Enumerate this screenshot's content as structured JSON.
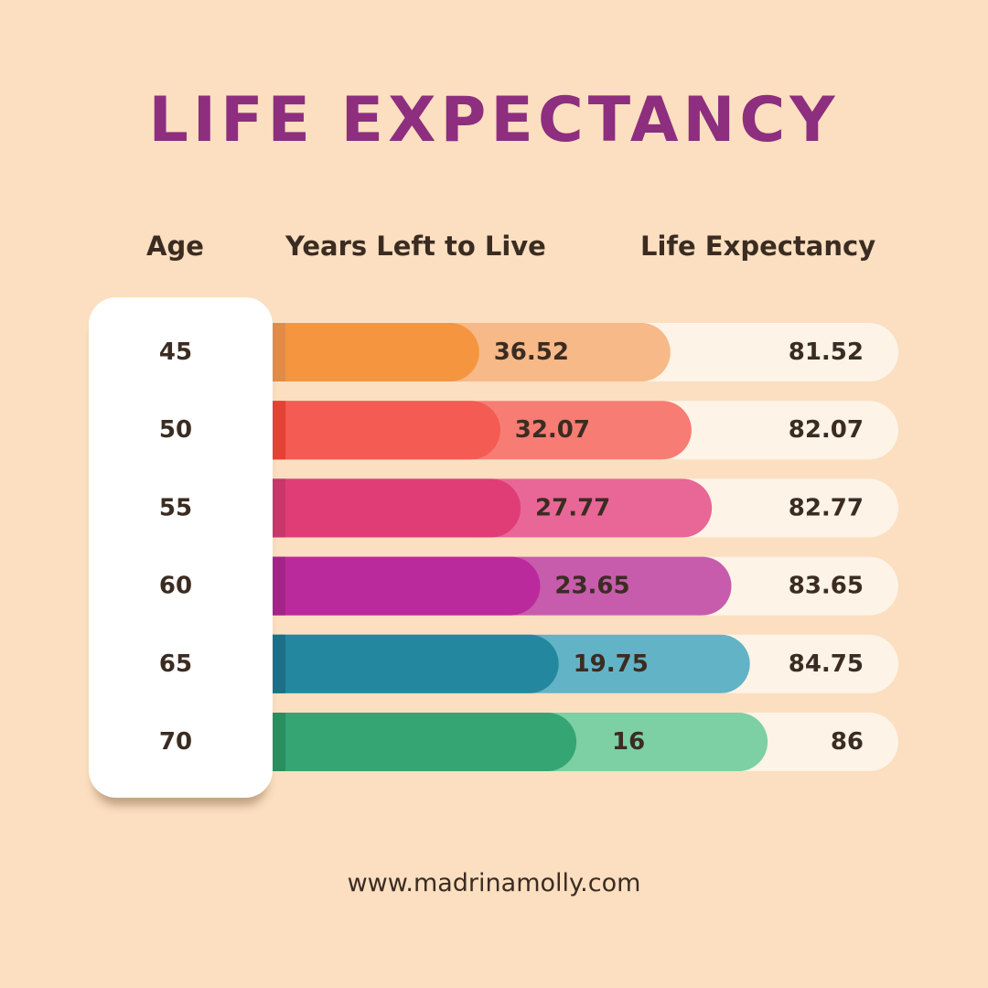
{
  "title": "LIFE EXPECTANCY",
  "headers": {
    "age": "Age",
    "years_left": "Years Left to Live",
    "life_expectancy": "Life Expectancy"
  },
  "footer": "www.madrinamolly.com",
  "chart_data": {
    "type": "bar",
    "title": "LIFE EXPECTANCY",
    "categories": [
      "45",
      "50",
      "55",
      "60",
      "65",
      "70"
    ],
    "series": [
      {
        "name": "Years Left to Live",
        "values": [
          36.52,
          32.07,
          27.77,
          23.65,
          19.75,
          16
        ]
      },
      {
        "name": "Life Expectancy",
        "values": [
          81.52,
          82.07,
          82.77,
          83.65,
          84.75,
          86
        ]
      }
    ],
    "labels": {
      "years_left": [
        "36.52",
        "32.07",
        "27.77",
        "23.65",
        "19.75",
        "16"
      ],
      "life_expectancy": [
        "81.52",
        "82.07",
        "82.77",
        "83.65",
        "84.75",
        "86"
      ]
    },
    "colors": [
      {
        "main": "#f5953f",
        "light": "#f7b988",
        "edge": "#e08c48"
      },
      {
        "main": "#f45b52",
        "light": "#f77c74",
        "edge": "#e44235"
      },
      {
        "main": "#e03d77",
        "light": "#e86797",
        "edge": "#c8366a"
      },
      {
        "main": "#bb2a9d",
        "light": "#c65cab",
        "edge": "#a32489"
      },
      {
        "main": "#23879f",
        "light": "#62b3c6",
        "edge": "#1d6f87"
      },
      {
        "main": "#35a573",
        "light": "#7dcfa4",
        "edge": "#2b8e5f"
      }
    ],
    "track_color": "#fdf3e7",
    "legend": "none",
    "grid": false
  }
}
